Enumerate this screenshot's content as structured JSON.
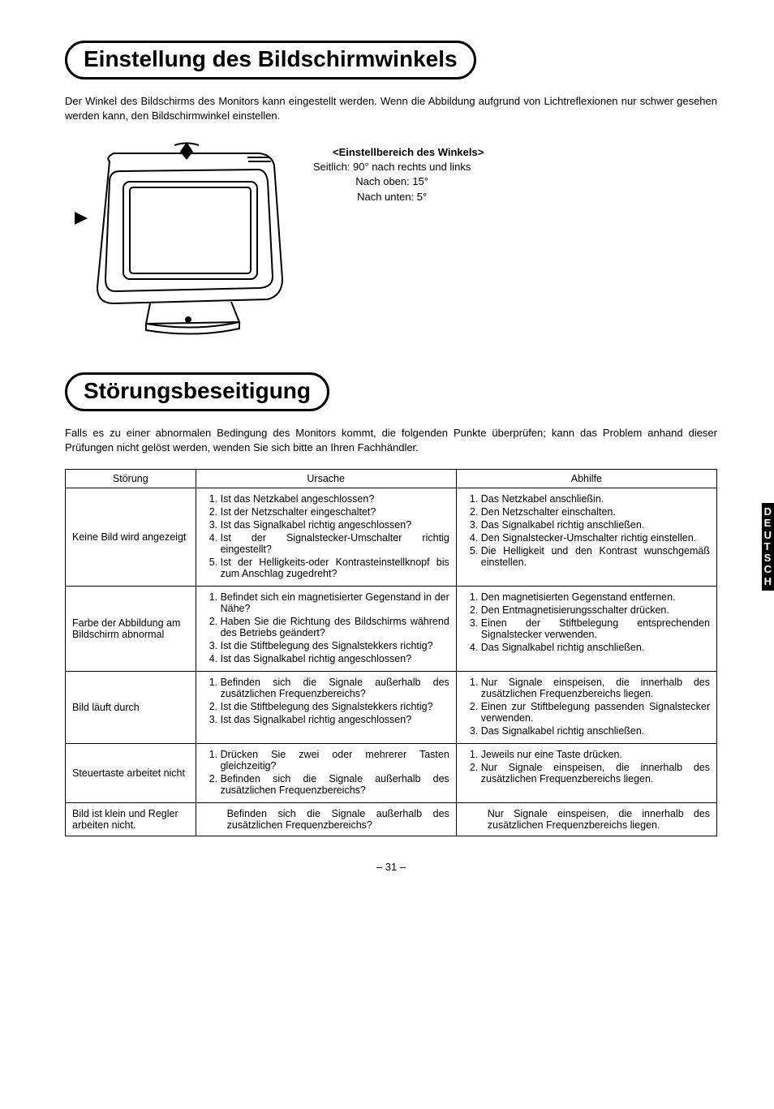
{
  "section1": {
    "title": "Einstellung des Bildschirmwinkels",
    "intro": "Der Winkel des Bildschirms des Monitors kann eingestellt werden. Wenn die Abbildung aufgrund von Lichtreflexionen nur schwer gesehen werden kann, den Bildschirmwinkel einstellen.",
    "angle_title": "<Einstellbereich des Winkels>",
    "angle_l1": "Seitlich: 90° nach rechts und links",
    "angle_l2": "Nach oben: 15°",
    "angle_l3": "Nach unten: 5°"
  },
  "section2": {
    "title": "Störungsbeseitigung",
    "intro": "Falls es zu einer abnormalen Bedingung des Monitors kommt, die folgenden Punkte überprüfen; kann das Problem anhand dieser Prüfungen nicht gelöst werden, wenden Sie sich bitte an Ihren Fachhändler."
  },
  "table": {
    "headers": [
      "Störung",
      "Ursache",
      "Abhilfe"
    ],
    "rows": [
      {
        "problem": "Keine Bild wird angezeigt",
        "causes": [
          "Ist das Netzkabel angeschlossen?",
          "Ist der Netzschalter eingeschaltet?",
          "Ist das Signalkabel richtig ange­schlossen?",
          "Ist der Signalstecker-Umschalter richtig eingestellt?",
          "Ist der Helligkeits-oder Kontrastein­stellknopf bis zum Anschlag zugedreht?"
        ],
        "remedies": [
          "Das Netzkabel anschließin.",
          "Den Netzschalter einschalten.",
          "Das Signalkabel richtig anschließen.",
          "Den Signalstecker-Umschalter rich­tig einstellen.",
          "Die Helligkeit und den Kontrast wunschgemäß einstellen."
        ]
      },
      {
        "problem": "Farbe der Abbildung am Bildschirm abnormal",
        "causes": [
          "Befindet sich ein magnetisierter Ge­genstand in der Nähe?",
          "Haben Sie die Richtung des Bild­schirms während des Betriebs geändert?",
          "Ist die Stiftbelegung des Signalstek­kers richtig?",
          "Ist das Signalkabel richtig ange­schlossen?"
        ],
        "remedies": [
          "Den magnetisierten Gegenstand entfernen.",
          "Den Entmagnetisierungsschalter drücken.",
          "Einen der Stiftbelegung entspre­chenden Signalstecker verwenden.",
          "Das Signalkabel richtig anschließen."
        ]
      },
      {
        "problem": "Bild läuft durch",
        "causes": [
          "Befinden sich die Signale außerhalb des zusätzlichen Frequenzbereichs?",
          "Ist die Stiftbelegung des Signalstek­kers richtig?",
          "Ist das Signalkabel richtig ange­schlossen?"
        ],
        "remedies": [
          "Nur Signale einspeisen, die inner­halb des zusätzlichen Frequenzbereichs liegen.",
          "Einen zur Stiftbelegung passenden Signalstecker verwenden.",
          "Das Signalkabel richtig anschließen."
        ]
      },
      {
        "problem": "Steuertaste arbeitet nicht",
        "causes": [
          "Drücken Sie zwei oder mehrerer Ta­sten gleichzeitig?",
          "Befinden sich die Signale außerhalb des zusätzlichen Frequenzbereichs?"
        ],
        "remedies": [
          "Jeweils nur eine Taste drücken.",
          "Nur Signale einspeisen, die inner­halb des zusätzlichen Frequenzbereichs liegen."
        ]
      },
      {
        "problem": "Bild ist klein und Re­gler arbeiten nicht.",
        "cause_plain": "Befinden sich die Signale außerhalb des zusätzlichen Frequenzbereichs?",
        "remedy_plain": "Nur Signale einspeisen, die inner­halb des zusätzlichen Frequenzbereichs liegen."
      }
    ]
  },
  "side_tab": [
    "D",
    "E",
    "U",
    "T",
    "S",
    "C",
    "H"
  ],
  "page_number": "– 31 –",
  "colors": {
    "text": "#000000",
    "background": "#ffffff",
    "border": "#000000"
  }
}
